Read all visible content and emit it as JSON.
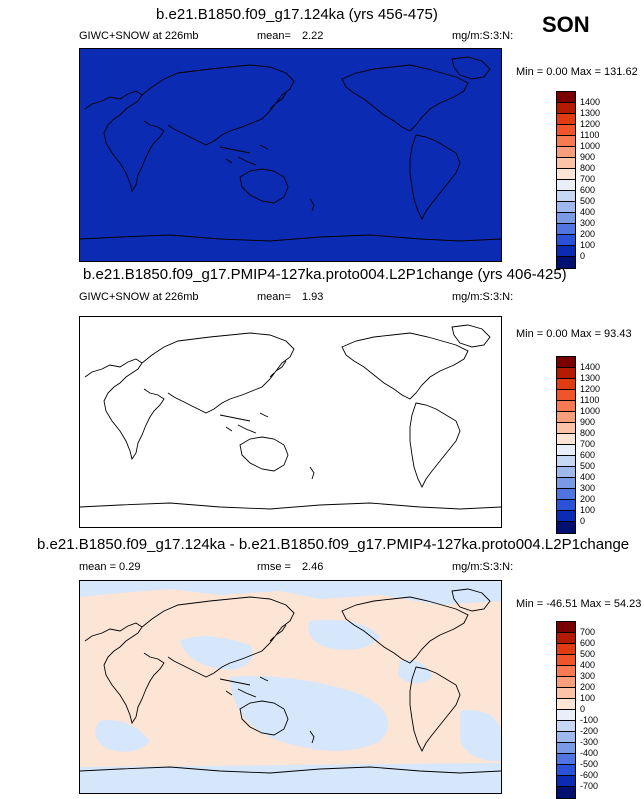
{
  "season": "SON",
  "units": "mg/m:S:3:N:",
  "panels": [
    {
      "title": "b.e21.B1850.f09_g17.124ka (yrs 456-475)",
      "left_label": "GIWC+SNOW at 226mb",
      "stat_label": "mean=",
      "stat_value": "2.22",
      "minmax": "Min =  0.00 Max = 131.62",
      "fill_color": "#0b2bb3",
      "levels": [
        "1400",
        "1300",
        "1200",
        "1100",
        "1000",
        "900",
        "800",
        "700",
        "600",
        "500",
        "400",
        "300",
        "200",
        "100",
        "0"
      ],
      "colors": [
        "#7a0000",
        "#b31a00",
        "#e03c10",
        "#f0552a",
        "#f77a50",
        "#f99e7a",
        "#fcc3a8",
        "#fde5d6",
        "#e9eef8",
        "#c6d6f3",
        "#9fb8ee",
        "#7a9ae6",
        "#4f76e0",
        "#2a52d6",
        "#0b2bb3",
        "#001070"
      ]
    },
    {
      "title": "b.e21.B1850.f09_g17.PMIP4-127ka.proto004.L2P1change (yrs 406-425)",
      "left_label": "GIWC+SNOW at 226mb",
      "stat_label": "mean=",
      "stat_value": "1.93",
      "minmax": "Min =  0.00 Max =  93.43",
      "fill_color": "#ffffff",
      "levels": [
        "1400",
        "1300",
        "1200",
        "1100",
        "1000",
        "900",
        "800",
        "700",
        "600",
        "500",
        "400",
        "300",
        "200",
        "100",
        "0"
      ],
      "colors": [
        "#7a0000",
        "#b31a00",
        "#e03c10",
        "#f0552a",
        "#f77a50",
        "#f99e7a",
        "#fcc3a8",
        "#fde5d6",
        "#e9eef8",
        "#c6d6f3",
        "#9fb8ee",
        "#7a9ae6",
        "#4f76e0",
        "#2a52d6",
        "#0b2bb3",
        "#001070"
      ]
    },
    {
      "title": "b.e21.B1850.f09_g17.124ka - b.e21.B1850.f09_g17.PMIP4-127ka.proto004.L2P1change",
      "left_label": "mean =  0.29",
      "stat_label": "rmse =",
      "stat_value": "2.46",
      "minmax": "Min = -46.51 Max =  54.23",
      "fill_color": "#fde5d6",
      "secondary_color": "#d6e6fb",
      "levels": [
        "700",
        "600",
        "500",
        "400",
        "300",
        "200",
        "100",
        "0",
        "-100",
        "-200",
        "-300",
        "-400",
        "-500",
        "-600",
        "-700"
      ],
      "colors": [
        "#7a0000",
        "#b31a00",
        "#e03c10",
        "#f0552a",
        "#f77a50",
        "#f99e7a",
        "#fcc3a8",
        "#fde5d6",
        "#e9eef8",
        "#c6d6f3",
        "#9fb8ee",
        "#7a9ae6",
        "#4f76e0",
        "#2a52d6",
        "#0b2bb3",
        "#001070"
      ]
    }
  ]
}
